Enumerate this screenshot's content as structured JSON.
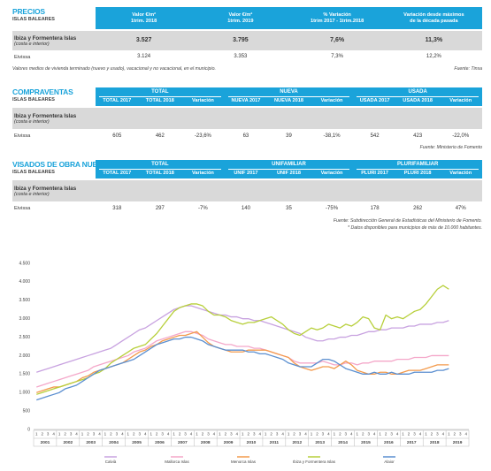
{
  "precios": {
    "title": "PRECIOS",
    "subtitle": "ISLAS BALEARES",
    "columns": [
      [
        "Valor €/m²",
        "1trim. 2018"
      ],
      [
        "Valor €/m²",
        "1trim. 2019"
      ],
      [
        "% Variación",
        "1trim 2017 - 1trim.2018"
      ],
      [
        "Variación desde máximos",
        "de la década pasada"
      ]
    ],
    "rows": [
      {
        "label": "Ibiza y Formentera Islas",
        "sublabel": "(costa e interior)",
        "cells": [
          "3.527",
          "3.795",
          "7,6%",
          "11,3%"
        ]
      },
      {
        "label": "Eivissa",
        "cells": [
          "3.124",
          "3.353",
          "7,3%",
          "12,2%"
        ]
      }
    ],
    "note": "Valores medios de vivienda terminado (nuevo y usado), vacacional y no vacacional, en el municipio.",
    "source": "Fuente: Tinsa"
  },
  "compraventas": {
    "title": "COMPRAVENTAS",
    "subtitle": "ISLAS BALEARES",
    "groups": [
      "TOTAL",
      "NUEVA",
      "USADA"
    ],
    "columns": [
      "TOTAL 2017",
      "TOTAL 2018",
      "Variación",
      "NUEVA 2017",
      "NUEVA 2018",
      "Variación",
      "USADA 2017",
      "USADA 2018",
      "Variación"
    ],
    "rows": [
      {
        "label": "Ibiza y Formentera Islas",
        "sublabel": "(costa e interior)"
      },
      {
        "label": "Eivissa",
        "cells": [
          "605",
          "462",
          "-23,6%",
          "63",
          "39",
          "-38,1%",
          "542",
          "423",
          "-22,0%"
        ]
      }
    ],
    "source": "Fuente: Ministerio de Fomento"
  },
  "visados": {
    "title": "VISADOS DE OBRA NUEVA",
    "subtitle": "ISLAS BALEARES",
    "groups": [
      "TOTAL",
      "UNIFAMILIAR",
      "PLURIFAMILIAR"
    ],
    "columns": [
      "TOTAL 2017",
      "TOTAL 2018",
      "Variación",
      "UNIF 2017",
      "UNIF 2018",
      "Variación",
      "PLURI 2017",
      "PLURI 2018",
      "Variación"
    ],
    "rows": [
      {
        "label": "Ibiza y Formentera Islas",
        "sublabel": "(costa e interior)"
      },
      {
        "label": "Eivissa",
        "cells": [
          "318",
          "297",
          "-7%",
          "140",
          "35",
          "-75%",
          "178",
          "262",
          "47%"
        ]
      }
    ],
    "notes": [
      "Fuente: Subdirección General de Estadísticas del Ministerio de Fomento.",
      "* Datos disponibles para municipios de más de 10.000 habitantes."
    ]
  },
  "chart_data": {
    "type": "line",
    "years": [
      "2001",
      "2002",
      "2003",
      "2004",
      "2005",
      "2006",
      "2007",
      "2008",
      "2009",
      "2010",
      "2011",
      "2012",
      "2013",
      "2014",
      "2015",
      "2016",
      "2017",
      "2018",
      "2019"
    ],
    "categories": [
      "1",
      "2",
      "3",
      "4",
      "1",
      "2",
      "3",
      "4",
      "1",
      "2",
      "3",
      "4",
      "1",
      "2",
      "3",
      "4",
      "1",
      "2",
      "3",
      "4",
      "1",
      "2",
      "3",
      "4",
      "1",
      "2",
      "3",
      "4",
      "1",
      "2",
      "3",
      "4",
      "1",
      "2",
      "3",
      "4",
      "1",
      "2",
      "3",
      "4",
      "1",
      "2",
      "3",
      "4",
      "1",
      "2",
      "3",
      "4",
      "1",
      "2",
      "3",
      "4",
      "1",
      "2",
      "3",
      "4",
      "1",
      "2",
      "3",
      "4",
      "1",
      "2",
      "3",
      "4",
      "1",
      "2",
      "3",
      "4",
      "1",
      "2",
      "3",
      "4",
      "1",
      "2",
      "3",
      "4"
    ],
    "ylim": [
      0,
      4500
    ],
    "yticks": [
      0,
      500,
      {
        "value": 1000,
        "label": "1.000"
      },
      {
        "value": 1500,
        "label": "1.500"
      },
      {
        "value": 2000,
        "label": "2.000"
      },
      {
        "value": 2500,
        "label": "2.500"
      },
      {
        "value": 3000,
        "label": "3.000"
      },
      {
        "value": 3500,
        "label": "3.500"
      },
      {
        "value": 4000,
        "label": "4.000"
      },
      {
        "value": 4500,
        "label": "4.500"
      }
    ],
    "grid": false,
    "series": [
      {
        "name": "Calvià",
        "color": "#c8a2e0",
        "values": [
          1550,
          1600,
          1650,
          1700,
          1750,
          1800,
          1850,
          1900,
          1950,
          2000,
          2050,
          2100,
          2150,
          2200,
          2300,
          2400,
          2500,
          2600,
          2700,
          2750,
          2850,
          2950,
          3050,
          3150,
          3250,
          3300,
          3350,
          3350,
          3300,
          3250,
          3200,
          3150,
          3100,
          3100,
          3050,
          3050,
          3000,
          3000,
          2950,
          2950,
          2900,
          2850,
          2800,
          2750,
          2700,
          2650,
          2600,
          2500,
          2450,
          2400,
          2400,
          2450,
          2450,
          2500,
          2500,
          2550,
          2550,
          2600,
          2650,
          2650,
          2700,
          2700,
          2750,
          2750,
          2750,
          2800,
          2800,
          2850,
          2850,
          2850,
          2900,
          2900,
          2950,
          null,
          null,
          null
        ]
      },
      {
        "name": "Mallorca Islas",
        "color": "#f4a7c9",
        "values": [
          1150,
          1200,
          1250,
          1300,
          1350,
          1400,
          1450,
          1500,
          1550,
          1600,
          1700,
          1750,
          1800,
          1850,
          1900,
          1950,
          2000,
          2100,
          2150,
          2200,
          2300,
          2400,
          2450,
          2500,
          2550,
          2600,
          2650,
          2650,
          2600,
          2550,
          2450,
          2400,
          2350,
          2300,
          2300,
          2250,
          2250,
          2250,
          2200,
          2200,
          2150,
          2100,
          2050,
          2000,
          1950,
          1850,
          1800,
          1800,
          1800,
          1800,
          1850,
          1800,
          1750,
          1750,
          1800,
          1800,
          1750,
          1800,
          1800,
          1850,
          1850,
          1850,
          1850,
          1900,
          1900,
          1900,
          1950,
          1950,
          1950,
          2000,
          2000,
          2000,
          2000,
          null,
          null,
          null
        ]
      },
      {
        "name": "Menorca Islas",
        "color": "#f39a4c",
        "values": [
          1000,
          1050,
          1100,
          1150,
          1150,
          1200,
          1250,
          1300,
          1400,
          1450,
          1550,
          1600,
          1650,
          1700,
          1750,
          1800,
          1900,
          2000,
          2100,
          2150,
          2250,
          2300,
          2400,
          2450,
          2500,
          2550,
          2550,
          2600,
          2650,
          2500,
          2350,
          2250,
          2200,
          2150,
          2100,
          2100,
          2100,
          2150,
          2150,
          2150,
          2150,
          2100,
          2050,
          2000,
          1950,
          1800,
          1700,
          1650,
          1600,
          1650,
          1700,
          1700,
          1650,
          1750,
          1850,
          1750,
          1600,
          1550,
          1500,
          1500,
          1550,
          1550,
          1500,
          1500,
          1550,
          1600,
          1600,
          1600,
          1650,
          1700,
          1750,
          1750,
          1750,
          null,
          null,
          null
        ]
      },
      {
        "name": "Ibiza y Formentera Islas",
        "color": "#b7cf3a",
        "values": [
          950,
          1000,
          1050,
          1100,
          1150,
          1200,
          1250,
          1300,
          1350,
          1400,
          1500,
          1550,
          1650,
          1800,
          1900,
          2000,
          2100,
          2200,
          2250,
          2300,
          2450,
          2600,
          2800,
          3000,
          3200,
          3300,
          3350,
          3400,
          3400,
          3350,
          3200,
          3100,
          3100,
          3050,
          2950,
          2900,
          2850,
          2900,
          2900,
          2950,
          3000,
          3050,
          2950,
          2850,
          2700,
          2600,
          2550,
          2650,
          2750,
          2700,
          2750,
          2850,
          2800,
          2750,
          2850,
          2800,
          2900,
          3050,
          3000,
          2750,
          2700,
          3100,
          3000,
          3050,
          3000,
          3100,
          3200,
          3250,
          3400,
          3600,
          3800,
          3900,
          3800,
          null,
          null,
          null
        ]
      },
      {
        "name": "Alaior",
        "color": "#5b8fd0",
        "values": [
          800,
          850,
          900,
          950,
          1000,
          1100,
          1150,
          1200,
          1300,
          1400,
          1500,
          1600,
          1650,
          1700,
          1750,
          1800,
          1850,
          1900,
          2000,
          2100,
          2200,
          2300,
          2350,
          2400,
          2450,
          2450,
          2500,
          2500,
          2450,
          2400,
          2300,
          2250,
          2200,
          2150,
          2150,
          2150,
          2150,
          2100,
          2100,
          2050,
          2050,
          2000,
          1950,
          1900,
          1800,
          1750,
          1700,
          1700,
          1700,
          1800,
          1900,
          1900,
          1850,
          1750,
          1650,
          1600,
          1550,
          1500,
          1500,
          1550,
          1500,
          1500,
          1550,
          1500,
          1500,
          1500,
          1550,
          1550,
          1550,
          1550,
          1600,
          1600,
          1650,
          null,
          null,
          null
        ]
      }
    ]
  }
}
